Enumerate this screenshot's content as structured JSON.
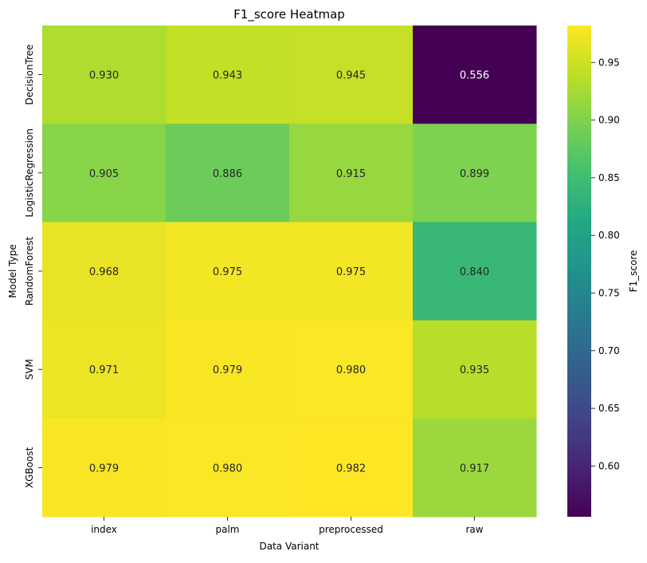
{
  "chart_data": {
    "type": "heatmap",
    "title": "F1_score Heatmap",
    "xlabel": "Data Variant",
    "ylabel": "Model Type",
    "x_categories": [
      "index",
      "palm",
      "preprocessed",
      "raw"
    ],
    "y_categories": [
      "DecisionTree",
      "LogisticRegression",
      "RandomForest",
      "SVM",
      "XGBoost"
    ],
    "values": [
      [
        0.93,
        0.943,
        0.945,
        0.556
      ],
      [
        0.905,
        0.886,
        0.915,
        0.899
      ],
      [
        0.968,
        0.975,
        0.975,
        0.84
      ],
      [
        0.971,
        0.979,
        0.98,
        0.935
      ],
      [
        0.979,
        0.98,
        0.982,
        0.917
      ]
    ],
    "value_format": "3 decimals",
    "colormap": "viridis",
    "colorbar": {
      "label": "F1_score",
      "range": [
        0.556,
        0.982
      ],
      "ticks": [
        0.6,
        0.65,
        0.7,
        0.75,
        0.8,
        0.85,
        0.9,
        0.95
      ],
      "tick_labels": [
        "0.60",
        "0.65",
        "0.70",
        "0.75",
        "0.80",
        "0.85",
        "0.90",
        "0.95"
      ]
    },
    "grid": false
  }
}
